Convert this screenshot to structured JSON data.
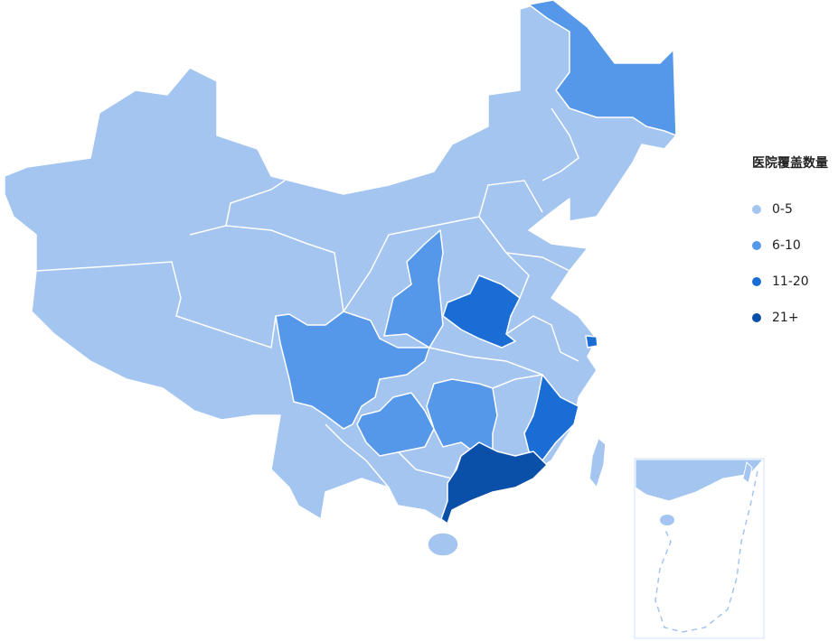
{
  "legend": {
    "title": "医院覆盖数量",
    "items": [
      {
        "label": "0-5",
        "color": "#a3c5f0"
      },
      {
        "label": "6-10",
        "color": "#5597e8"
      },
      {
        "label": "11-20",
        "color": "#1b6dd6"
      },
      {
        "label": "21+",
        "color": "#0a4fa8"
      }
    ]
  },
  "regions": [
    {
      "name": "Heilongjiang",
      "bin": 1
    },
    {
      "name": "Shaanxi",
      "bin": 1
    },
    {
      "name": "Henan",
      "bin": 2
    },
    {
      "name": "Sichuan",
      "bin": 1
    },
    {
      "name": "Guizhou",
      "bin": 1
    },
    {
      "name": "Hunan",
      "bin": 1
    },
    {
      "name": "Fujian",
      "bin": 2
    },
    {
      "name": "Guangdong",
      "bin": 3
    },
    {
      "name": "Shanghai",
      "bin": 2
    }
  ],
  "default_bin": 0
}
